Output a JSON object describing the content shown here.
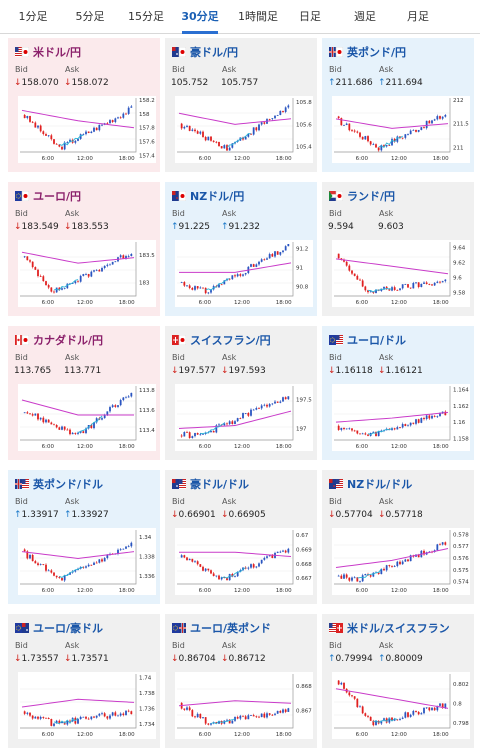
{
  "tabs": [
    "1分足",
    "5分足",
    "15分足",
    "30分足",
    "1時間足",
    "日足",
    "週足",
    "月足"
  ],
  "active_tab": 3,
  "labels": {
    "bid": "Bid",
    "ask": "Ask"
  },
  "x_ticks": [
    "6:00",
    "12:00",
    "18:00"
  ],
  "colors": {
    "up": "#1a78c8",
    "down": "#d0241c",
    "up_candle": "#2a55c0",
    "down_candle": "#e02020",
    "ma_long": "#c93bc9",
    "ma_short": "#2cb4d6"
  },
  "cards": [
    {
      "name": "米ドル/円",
      "flag": "us-jp-flag-icon",
      "bg": "pink",
      "bid": "158.070",
      "ask": "158.072",
      "dir": "down",
      "yticks": [
        "158.2",
        "158",
        "157.8",
        "157.6",
        "157.4"
      ],
      "chart_data": {
        "type": "candlestick",
        "start": 158.0,
        "end": 158.07,
        "low": 157.45,
        "high": 158.2,
        "dip": 0.35,
        "ma": [
          158.05,
          157.9,
          157.8
        ]
      }
    },
    {
      "name": "豪ドル/円",
      "flag": "au-jp-flag-icon",
      "bg": "gray",
      "bid": "105.752",
      "ask": "105.757",
      "dir": "",
      "yticks": [
        "105.8",
        "105.6",
        "105.4"
      ],
      "chart_data": {
        "type": "candlestick",
        "start": 105.6,
        "end": 105.76,
        "low": 105.35,
        "high": 105.82,
        "dip": 0.45,
        "ma": [
          105.7,
          105.6,
          105.65
        ]
      }
    },
    {
      "name": "英ポンド/円",
      "flag": "gb-jp-flag-icon",
      "bg": "blue",
      "bid": "211.686",
      "ask": "211.694",
      "dir": "up",
      "yticks": [
        "212",
        "211.5",
        "211"
      ],
      "chart_data": {
        "type": "candlestick",
        "start": 211.6,
        "end": 211.69,
        "low": 210.9,
        "high": 212.0,
        "dip": 0.4,
        "ma": [
          211.6,
          211.4,
          211.5
        ]
      }
    },
    {
      "name": "ユーロ/円",
      "flag": "eu-jp-flag-icon",
      "bg": "pink",
      "bid": "183.549",
      "ask": "183.553",
      "dir": "down",
      "yticks": [
        "183.5",
        "183"
      ],
      "chart_data": {
        "type": "candlestick",
        "start": 183.5,
        "end": 183.55,
        "low": 182.75,
        "high": 183.7,
        "dip": 0.3,
        "ma": [
          183.55,
          183.35,
          183.45
        ]
      }
    },
    {
      "name": "NZドル/円",
      "flag": "nz-jp-flag-icon",
      "bg": "blue",
      "bid": "91.225",
      "ask": "91.232",
      "dir": "up",
      "yticks": [
        "91.2",
        "91",
        "90.8"
      ],
      "chart_data": {
        "type": "candlestick",
        "start": 90.85,
        "end": 91.22,
        "low": 90.7,
        "high": 91.25,
        "dip": 0.25,
        "ma": [
          90.95,
          90.95,
          91.05
        ]
      }
    },
    {
      "name": "ランド/円",
      "flag": "za-jp-flag-icon",
      "bg": "gray",
      "bid": "9.594",
      "ask": "9.603",
      "dir": "",
      "yticks": [
        "9.64",
        "9.62",
        "9.6",
        "9.58"
      ],
      "chart_data": {
        "type": "candlestick",
        "start": 9.63,
        "end": 9.595,
        "low": 9.575,
        "high": 9.645,
        "dip": 0.3,
        "ma": [
          9.625,
          9.615,
          9.605
        ]
      }
    },
    {
      "name": "カナダドル/円",
      "flag": "ca-jp-flag-icon",
      "bg": "pink",
      "bid": "113.765",
      "ask": "113.771",
      "dir": "",
      "yticks": [
        "113.8",
        "113.6",
        "113.4"
      ],
      "chart_data": {
        "type": "candlestick",
        "start": 113.6,
        "end": 113.77,
        "low": 113.3,
        "high": 113.82,
        "dip": 0.5,
        "ma": [
          113.7,
          113.55,
          113.55
        ]
      }
    },
    {
      "name": "スイスフラン/円",
      "flag": "ch-jp-flag-icon",
      "bg": "gray",
      "bid": "197.577",
      "ask": "197.593",
      "dir": "down",
      "yticks": [
        "197.5",
        "197"
      ],
      "chart_data": {
        "type": "candlestick",
        "start": 196.9,
        "end": 197.58,
        "low": 196.8,
        "high": 197.7,
        "dip": 0.2,
        "ma": [
          197.0,
          197.05,
          197.3
        ]
      }
    },
    {
      "name": "ユーロ/ドル",
      "flag": "eu-us-flag-icon",
      "bg": "blue",
      "bid": "1.16118",
      "ask": "1.16121",
      "dir": "down",
      "yticks": [
        "1.164",
        "1.162",
        "1.16",
        "1.158"
      ],
      "chart_data": {
        "type": "candlestick",
        "start": 1.1595,
        "end": 1.1612,
        "low": 1.1578,
        "high": 1.1642,
        "dip": 0.3,
        "ma": [
          1.16,
          1.1605,
          1.1612
        ]
      }
    },
    {
      "name": "英ポンド/ドル",
      "flag": "gb-us-flag-icon",
      "bg": "blue",
      "bid": "1.33917",
      "ask": "1.33927",
      "dir": "up",
      "yticks": [
        "1.34",
        "1.338",
        "1.336"
      ],
      "chart_data": {
        "type": "candlestick",
        "start": 1.3385,
        "end": 1.3392,
        "low": 1.3352,
        "high": 1.3405,
        "dip": 0.35,
        "ma": [
          1.3385,
          1.3378,
          1.3385
        ]
      }
    },
    {
      "name": "豪ドル/ドル",
      "flag": "au-us-flag-icon",
      "bg": "gray",
      "bid": "0.66901",
      "ask": "0.66905",
      "dir": "down",
      "yticks": [
        "0.67",
        "0.669",
        "0.668",
        "0.667"
      ],
      "chart_data": {
        "type": "candlestick",
        "start": 0.6686,
        "end": 0.669,
        "low": 0.6666,
        "high": 0.6702,
        "dip": 0.4,
        "ma": [
          0.6688,
          0.6688,
          0.6685
        ]
      }
    },
    {
      "name": "NZドル/ドル",
      "flag": "nz-us-flag-icon",
      "bg": "gray",
      "bid": "0.57704",
      "ask": "0.57718",
      "dir": "down",
      "yticks": [
        "0.578",
        "0.577",
        "0.576",
        "0.575",
        "0.574"
      ],
      "chart_data": {
        "type": "candlestick",
        "start": 0.5745,
        "end": 0.5772,
        "low": 0.5738,
        "high": 0.5782,
        "dip": 0.2,
        "ma": [
          0.5752,
          0.5758,
          0.5768
        ]
      }
    },
    {
      "name": "ユーロ/豪ドル",
      "flag": "eu-au-flag-icon",
      "bg": "gray",
      "bid": "1.73557",
      "ask": "1.73571",
      "dir": "down",
      "yticks": [
        "1.74",
        "1.738",
        "1.736",
        "1.734"
      ],
      "chart_data": {
        "type": "candlestick",
        "start": 1.7355,
        "end": 1.7356,
        "low": 1.7335,
        "high": 1.7402,
        "dip": 0.3,
        "ma": [
          1.7362,
          1.7372,
          1.7368
        ]
      }
    },
    {
      "name": "ユーロ/英ポンド",
      "flag": "eu-gb-flag-icon",
      "bg": "gray",
      "bid": "0.86704",
      "ask": "0.86712",
      "dir": "down",
      "yticks": [
        "0.868",
        "0.867"
      ],
      "chart_data": {
        "type": "candlestick",
        "start": 0.8672,
        "end": 0.867,
        "low": 0.8663,
        "high": 0.8684,
        "dip": 0.3,
        "ma": [
          0.8672,
          0.8674,
          0.8673
        ]
      }
    },
    {
      "name": "米ドル/スイスフラン",
      "flag": "us-ch-flag-icon",
      "bg": "gray",
      "bid": "0.79994",
      "ask": "0.80009",
      "dir": "up",
      "yticks": [
        "0.802",
        "0.8",
        "0.798"
      ],
      "chart_data": {
        "type": "candlestick",
        "start": 0.8025,
        "end": 0.7999,
        "low": 0.7975,
        "high": 0.8028,
        "dip": 0.35,
        "ma": [
          0.8015,
          0.8005,
          0.7995
        ]
      }
    }
  ]
}
